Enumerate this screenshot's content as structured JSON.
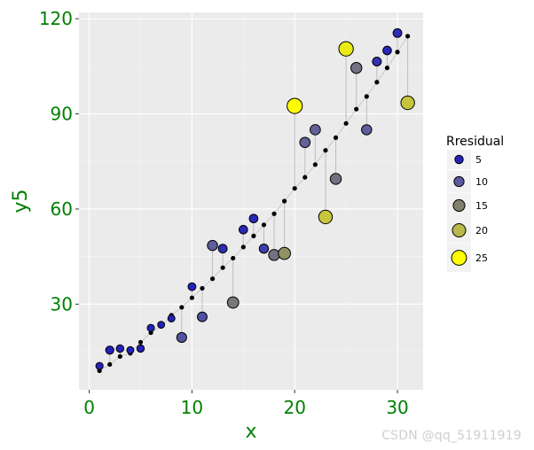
{
  "chart_data": {
    "type": "scatter",
    "xlabel": "x",
    "ylabel": "y5",
    "xlim": [
      -1,
      32.5
    ],
    "ylim": [
      3,
      122
    ],
    "xticks": [
      0,
      10,
      20,
      30
    ],
    "yticks": [
      30,
      60,
      90,
      120
    ],
    "grid": true,
    "legend_position": "right",
    "legend": {
      "title": "Rresidual",
      "sizes": [
        5,
        10,
        15,
        20,
        25
      ],
      "colors": [
        "#2222bb",
        "#5a5aa0",
        "#80806c",
        "#b8b84c",
        "#ffff00"
      ]
    },
    "x": [
      1,
      2,
      3,
      4,
      5,
      6,
      7,
      8,
      9,
      10,
      11,
      12,
      13,
      14,
      15,
      16,
      17,
      18,
      19,
      20,
      21,
      22,
      23,
      24,
      25,
      26,
      27,
      28,
      29,
      30,
      31
    ],
    "observed": [
      10.5,
      15.5,
      16,
      15.5,
      16,
      22.5,
      23.5,
      25.5,
      19.5,
      35.5,
      26,
      48.5,
      47.5,
      30.5,
      53.5,
      57,
      47.5,
      45.5,
      46,
      92.5,
      81,
      85,
      57.5,
      69.5,
      110.5,
      104.5,
      85,
      106.5,
      110,
      115.5,
      93.5
    ],
    "fitted": [
      9,
      11,
      13.5,
      14.5,
      18,
      21,
      23,
      26.5,
      29,
      32,
      35,
      38,
      41.5,
      44.5,
      48,
      51.5,
      55,
      58.5,
      62.5,
      66.5,
      70,
      74,
      78.5,
      82.5,
      87,
      91.5,
      95.5,
      100,
      104.5,
      109.5,
      114.5
    ],
    "residual": [
      1.5,
      4.5,
      2.5,
      1,
      2,
      1.5,
      0.5,
      1,
      9.5,
      3.5,
      9,
      10.5,
      6,
      14,
      5.5,
      5.5,
      7.5,
      13,
      16.5,
      26,
      11,
      11,
      21,
      13,
      23.5,
      13,
      10.5,
      6.5,
      5.5,
      6,
      21
    ]
  },
  "watermark": "CSDN @qq_51911919"
}
